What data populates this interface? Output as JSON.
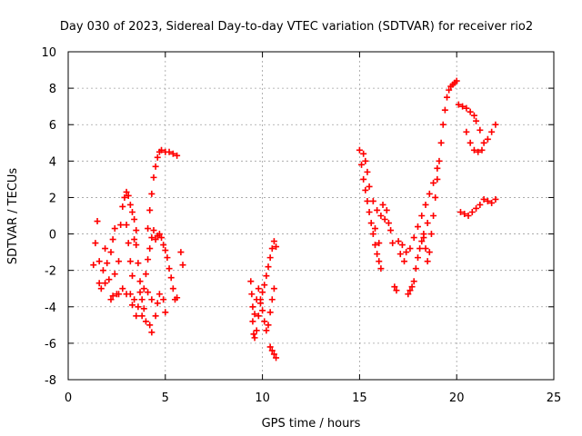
{
  "chart_data": {
    "type": "scatter",
    "title": "Day 030 of 2023, Sidereal Day-to-day VTEC variation (SDTVAR) for receiver rio2",
    "xlabel": "GPS time / hours",
    "ylabel": "SDTVAR / TECUs",
    "xlim": [
      0,
      25
    ],
    "ylim": [
      -8,
      10
    ],
    "xticks": [
      0,
      5,
      10,
      15,
      20,
      25
    ],
    "yticks": [
      -8,
      -6,
      -4,
      -2,
      0,
      2,
      4,
      6,
      8,
      10
    ],
    "grid": true,
    "marker": "+",
    "color": "#ff0000",
    "series": [
      {
        "points": [
          [
            1.3,
            -1.7
          ],
          [
            1.4,
            -0.5
          ],
          [
            1.5,
            0.7
          ],
          [
            1.6,
            -1.5
          ],
          [
            1.6,
            -2.7
          ],
          [
            1.7,
            -3.0
          ],
          [
            1.8,
            -2.0
          ],
          [
            1.9,
            -0.8
          ],
          [
            2.0,
            -1.6
          ],
          [
            2.1,
            -2.5
          ],
          [
            2.2,
            -1.0
          ],
          [
            2.3,
            -0.3
          ],
          [
            2.4,
            0.3
          ],
          [
            2.4,
            -2.2
          ],
          [
            2.5,
            -3.3
          ],
          [
            2.6,
            -1.5
          ],
          [
            2.7,
            0.5
          ],
          [
            2.8,
            1.5
          ],
          [
            2.9,
            2.0
          ],
          [
            3.0,
            2.3
          ],
          [
            3.1,
            2.1
          ],
          [
            3.2,
            1.6
          ],
          [
            3.3,
            1.2
          ],
          [
            3.4,
            0.8
          ],
          [
            3.5,
            0.2
          ],
          [
            3.5,
            -0.6
          ],
          [
            3.6,
            -1.6
          ],
          [
            3.7,
            -2.6
          ],
          [
            3.7,
            -3.2
          ],
          [
            3.8,
            -3.6
          ],
          [
            3.9,
            -3.0
          ],
          [
            4.0,
            -2.2
          ],
          [
            4.1,
            -1.4
          ],
          [
            4.2,
            -0.8
          ],
          [
            4.3,
            -0.2
          ],
          [
            4.4,
            0.2
          ],
          [
            4.5,
            -0.3
          ],
          [
            4.6,
            -0.1
          ],
          [
            4.7,
            0.0
          ],
          [
            4.8,
            -0.2
          ],
          [
            4.9,
            -0.6
          ],
          [
            5.0,
            -0.9
          ],
          [
            5.1,
            -1.3
          ],
          [
            5.2,
            -1.9
          ],
          [
            5.3,
            -2.4
          ],
          [
            5.4,
            -3.0
          ],
          [
            5.5,
            -3.6
          ],
          [
            5.6,
            -3.5
          ],
          [
            5.8,
            -1.0
          ],
          [
            5.9,
            -1.7
          ],
          [
            2.6,
            -3.3
          ],
          [
            2.8,
            -3.0
          ],
          [
            3.0,
            -3.3
          ],
          [
            3.2,
            -3.3
          ],
          [
            3.4,
            -3.6
          ],
          [
            3.6,
            -4.0
          ],
          [
            3.8,
            -4.5
          ],
          [
            4.0,
            -4.8
          ],
          [
            4.2,
            -5.0
          ],
          [
            4.3,
            -5.4
          ],
          [
            4.5,
            -4.5
          ],
          [
            4.6,
            -3.8
          ],
          [
            4.7,
            -3.3
          ],
          [
            4.9,
            -3.6
          ],
          [
            5.0,
            -4.3
          ],
          [
            4.1,
            -3.2
          ],
          [
            4.3,
            -3.6
          ],
          [
            3.5,
            -4.5
          ],
          [
            3.3,
            -3.9
          ],
          [
            3.9,
            -4.1
          ],
          [
            4.1,
            0.3
          ],
          [
            4.2,
            1.3
          ],
          [
            4.3,
            2.2
          ],
          [
            4.4,
            3.1
          ],
          [
            4.5,
            3.7
          ],
          [
            4.6,
            4.2
          ],
          [
            4.7,
            4.5
          ],
          [
            4.8,
            4.6
          ],
          [
            5.0,
            4.5
          ],
          [
            5.2,
            4.5
          ],
          [
            5.4,
            4.4
          ],
          [
            5.6,
            4.3
          ],
          [
            3.0,
            0.5
          ],
          [
            3.1,
            -0.5
          ],
          [
            3.2,
            -1.5
          ],
          [
            3.3,
            -2.3
          ],
          [
            1.9,
            -2.7
          ],
          [
            2.2,
            -3.6
          ],
          [
            2.3,
            -3.4
          ],
          [
            3.4,
            -0.3
          ]
        ]
      },
      {
        "points": [
          [
            9.4,
            -2.6
          ],
          [
            9.45,
            -3.3
          ],
          [
            9.5,
            -4.0
          ],
          [
            9.5,
            -4.8
          ],
          [
            9.55,
            -5.5
          ],
          [
            9.6,
            -5.7
          ],
          [
            9.7,
            -5.3
          ],
          [
            9.8,
            -4.5
          ],
          [
            9.9,
            -3.8
          ],
          [
            10.0,
            -3.2
          ],
          [
            10.1,
            -2.8
          ],
          [
            10.2,
            -2.3
          ],
          [
            10.3,
            -1.8
          ],
          [
            10.4,
            -1.3
          ],
          [
            10.5,
            -0.8
          ],
          [
            10.6,
            -0.4
          ],
          [
            9.8,
            -3.0
          ],
          [
            9.9,
            -3.6
          ],
          [
            10.0,
            -4.2
          ],
          [
            10.1,
            -4.8
          ],
          [
            10.2,
            -5.3
          ],
          [
            10.3,
            -5.0
          ],
          [
            10.4,
            -4.3
          ],
          [
            10.5,
            -3.6
          ],
          [
            10.6,
            -3.0
          ],
          [
            10.4,
            -6.2
          ],
          [
            10.5,
            -6.4
          ],
          [
            10.6,
            -6.6
          ],
          [
            10.7,
            -6.8
          ],
          [
            10.7,
            -0.7
          ],
          [
            9.6,
            -4.4
          ],
          [
            9.7,
            -3.6
          ]
        ]
      },
      {
        "points": [
          [
            15.0,
            4.6
          ],
          [
            15.1,
            3.8
          ],
          [
            15.2,
            3.0
          ],
          [
            15.3,
            2.4
          ],
          [
            15.4,
            1.8
          ],
          [
            15.5,
            1.2
          ],
          [
            15.6,
            0.6
          ],
          [
            15.7,
            0.0
          ],
          [
            15.8,
            -0.6
          ],
          [
            15.9,
            -1.1
          ],
          [
            16.0,
            -1.5
          ],
          [
            16.1,
            -1.9
          ],
          [
            15.2,
            4.4
          ],
          [
            15.3,
            4.0
          ],
          [
            15.4,
            3.4
          ],
          [
            15.5,
            2.6
          ],
          [
            15.7,
            1.8
          ],
          [
            15.9,
            1.3
          ],
          [
            16.1,
            1.0
          ],
          [
            16.3,
            0.8
          ],
          [
            16.5,
            0.6
          ],
          [
            16.6,
            0.2
          ],
          [
            16.7,
            -0.5
          ],
          [
            16.8,
            -2.9
          ],
          [
            16.9,
            -3.1
          ],
          [
            17.0,
            -0.4
          ],
          [
            17.2,
            -0.6
          ],
          [
            17.4,
            -1.0
          ],
          [
            17.5,
            -3.3
          ],
          [
            17.6,
            -3.1
          ],
          [
            17.7,
            -2.9
          ],
          [
            17.8,
            -2.6
          ],
          [
            17.9,
            -1.9
          ],
          [
            18.0,
            -1.3
          ],
          [
            18.1,
            -0.8
          ],
          [
            18.2,
            -0.4
          ],
          [
            18.3,
            0.0
          ],
          [
            18.4,
            -0.8
          ],
          [
            18.5,
            -1.5
          ],
          [
            18.6,
            -1.0
          ],
          [
            18.7,
            0.0
          ],
          [
            18.8,
            1.0
          ],
          [
            18.9,
            2.0
          ],
          [
            19.0,
            3.0
          ],
          [
            19.1,
            4.0
          ],
          [
            19.2,
            5.0
          ],
          [
            19.3,
            6.0
          ],
          [
            19.4,
            6.8
          ],
          [
            19.5,
            7.5
          ],
          [
            19.6,
            7.9
          ],
          [
            19.7,
            8.1
          ],
          [
            19.8,
            8.2
          ],
          [
            19.9,
            8.3
          ],
          [
            20.0,
            8.4
          ],
          [
            20.1,
            7.1
          ],
          [
            20.3,
            7.0
          ],
          [
            20.5,
            6.9
          ],
          [
            20.7,
            6.7
          ],
          [
            20.9,
            6.5
          ],
          [
            21.0,
            6.2
          ],
          [
            21.2,
            5.7
          ],
          [
            21.4,
            5.0
          ],
          [
            21.6,
            5.2
          ],
          [
            21.8,
            5.6
          ],
          [
            22.0,
            6.0
          ],
          [
            20.5,
            5.6
          ],
          [
            20.7,
            5.0
          ],
          [
            20.9,
            4.6
          ],
          [
            21.1,
            4.5
          ],
          [
            21.3,
            4.6
          ],
          [
            20.2,
            1.2
          ],
          [
            20.4,
            1.1
          ],
          [
            20.6,
            1.0
          ],
          [
            20.8,
            1.2
          ],
          [
            21.0,
            1.4
          ],
          [
            21.2,
            1.6
          ],
          [
            21.4,
            1.9
          ],
          [
            21.6,
            1.8
          ],
          [
            21.8,
            1.7
          ],
          [
            22.0,
            1.9
          ],
          [
            17.3,
            -1.5
          ],
          [
            17.6,
            -0.8
          ],
          [
            17.8,
            -0.2
          ],
          [
            18.0,
            0.4
          ],
          [
            18.2,
            1.0
          ],
          [
            18.4,
            1.6
          ],
          [
            18.6,
            2.2
          ],
          [
            18.8,
            2.8
          ],
          [
            19.0,
            3.6
          ],
          [
            17.1,
            -1.1
          ],
          [
            16.4,
            1.3
          ],
          [
            16.2,
            1.6
          ],
          [
            18.3,
            -0.2
          ],
          [
            18.5,
            0.6
          ],
          [
            16.0,
            -0.5
          ],
          [
            15.8,
            0.3
          ]
        ]
      }
    ]
  }
}
